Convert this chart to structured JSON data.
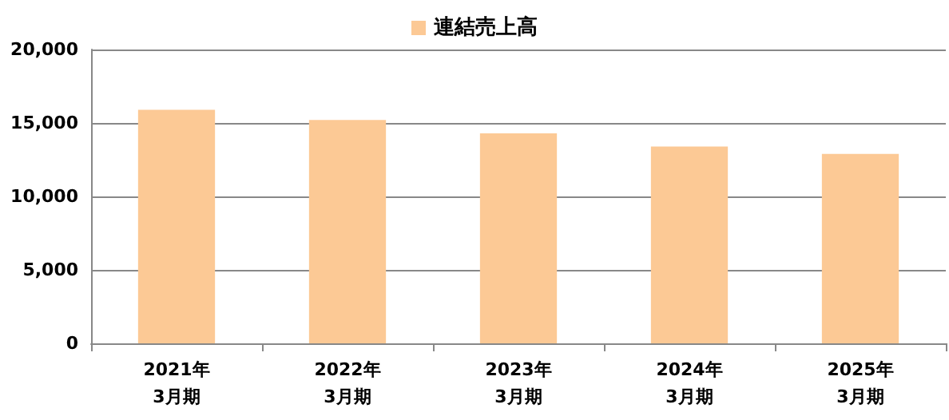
{
  "chart_data": {
    "type": "bar",
    "categories": [
      "2021年\n3月期",
      "2022年\n3月期",
      "2023年\n3月期",
      "2024年\n3月期",
      "2025年\n3月期"
    ],
    "series": [
      {
        "name": "連結売上高",
        "color": "#fcc995",
        "values": [
          15900,
          15200,
          14300,
          13400,
          12900
        ]
      }
    ],
    "ylim": [
      0,
      20000
    ],
    "yticks": [
      {
        "value": 0,
        "label": "0"
      },
      {
        "value": 5000,
        "label": "5,000"
      },
      {
        "value": 10000,
        "label": "10,000"
      },
      {
        "value": 15000,
        "label": "15,000"
      },
      {
        "value": 20000,
        "label": "20,000"
      }
    ],
    "grid": "y",
    "legend": "top"
  }
}
